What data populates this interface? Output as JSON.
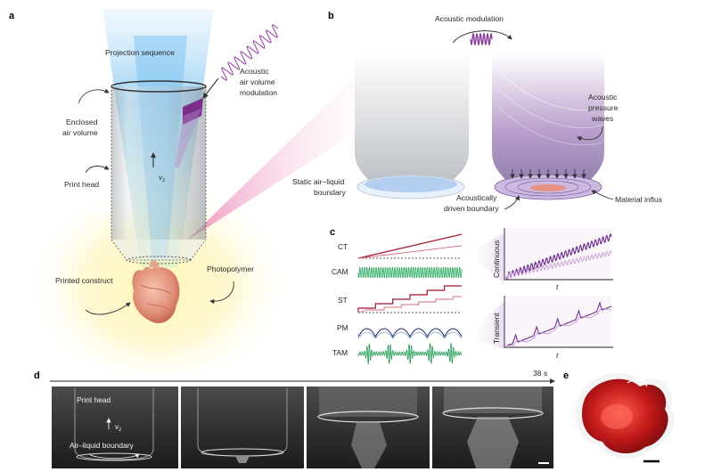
{
  "panels": {
    "a": {
      "letter": "a",
      "labels": {
        "projection": "Projection sequence",
        "acoustic_1": "Acoustic",
        "acoustic_2": "air volume",
        "acoustic_3": "modulation",
        "enclosed_1": "Enclosed",
        "enclosed_2": "air volume",
        "print_head": "Print head",
        "velocity": "v",
        "velocity_sub": "z",
        "printed_construct": "Printed construct",
        "photopolymer": "Photopolymer"
      }
    },
    "b": {
      "letter": "b",
      "labels": {
        "acoustic_modulation": "Acoustic modulation",
        "pressure_1": "Acoustic",
        "pressure_2": "pressure",
        "pressure_3": "waves",
        "static_1": "Static air–liquid",
        "static_2": "boundary",
        "driven_1": "Acoustically",
        "driven_2": "driven boundary",
        "influx": "Material influx"
      }
    },
    "c": {
      "letter": "c",
      "rows": [
        "CT",
        "CAM",
        "ST",
        "PM",
        "TAM"
      ],
      "plot_labels": {
        "continuous": "Continuous",
        "transient": "Transient",
        "t_top": "t",
        "t_bottom": "t"
      }
    },
    "d": {
      "letter": "d",
      "time": "38 s",
      "labels": {
        "print_head": "Print head",
        "velocity": "v",
        "velocity_sub": "z",
        "boundary": "Air–liquid boundary"
      }
    },
    "e": {
      "letter": "e"
    }
  },
  "colors": {
    "ct_red": "#a3162c",
    "cam_green": "#1f9a53",
    "pm_navy": "#1d2d6b",
    "tam_green": "#1a8a4a",
    "acoustic_purple": "#8a3a9a",
    "trace_purple": "#6a2a8a",
    "trace_purple_light": "#c49ad2",
    "print_light": "#5fb5e8",
    "heart": "#e39a84",
    "photopolymer_glow": "#fff2a8",
    "model_red": "#c01818"
  }
}
